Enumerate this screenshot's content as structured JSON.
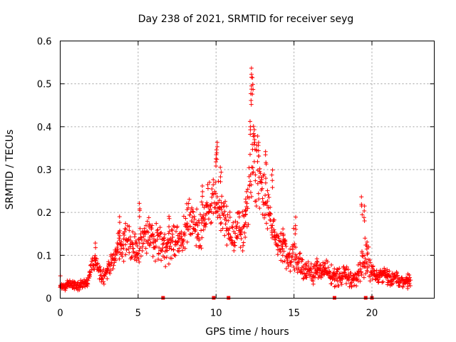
{
  "chart_data": {
    "type": "scatter",
    "title": "Day 238 of 2021, SRMTID for receiver seyg",
    "xlabel": "GPS time / hours",
    "ylabel": "SRMTID / TECUs",
    "xlim": [
      0,
      24
    ],
    "ylim": [
      0,
      0.6
    ],
    "xticks": [
      "0",
      "5",
      "10",
      "15",
      "20"
    ],
    "xtick_values": [
      0,
      5,
      10,
      15,
      20
    ],
    "yticks": [
      "0",
      "0.1",
      "0.2",
      "0.3",
      "0.4",
      "0.5",
      "0.6"
    ],
    "ytick_values": [
      0,
      0.1,
      0.2,
      0.3,
      0.4,
      0.5,
      0.6
    ],
    "grid": true,
    "marker": "plus",
    "series": [
      {
        "name": "SRMTID",
        "color": "#ff0000",
        "x": [
          0.0,
          0.25,
          0.5,
          0.75,
          1.0,
          1.25,
          1.5,
          1.75,
          2.0,
          2.25,
          2.5,
          2.75,
          3.0,
          3.25,
          3.5,
          3.75,
          4.0,
          4.25,
          4.5,
          4.75,
          5.0,
          5.25,
          5.5,
          5.75,
          6.0,
          6.25,
          6.5,
          6.75,
          7.0,
          7.25,
          7.5,
          7.75,
          8.0,
          8.25,
          8.5,
          8.75,
          9.0,
          9.25,
          9.5,
          9.75,
          10.0,
          10.25,
          10.5,
          10.75,
          11.0,
          11.25,
          11.5,
          11.75,
          12.0,
          12.25,
          12.5,
          12.75,
          13.0,
          13.25,
          13.5,
          13.75,
          14.0,
          14.25,
          14.5,
          14.75,
          15.0,
          15.25,
          15.5,
          15.75,
          16.0,
          16.25,
          16.5,
          16.75,
          17.0,
          17.25,
          17.5,
          17.75,
          18.0,
          18.25,
          18.5,
          18.75,
          19.0,
          19.25,
          19.5,
          19.75,
          20.0,
          20.25,
          20.5,
          20.75,
          21.0,
          21.25,
          21.5,
          21.75,
          22.0,
          22.25,
          22.5
        ],
        "y": [
          0.03,
          0.025,
          0.035,
          0.03,
          0.028,
          0.03,
          0.035,
          0.04,
          0.07,
          0.09,
          0.06,
          0.05,
          0.06,
          0.08,
          0.09,
          0.12,
          0.13,
          0.14,
          0.12,
          0.13,
          0.11,
          0.14,
          0.15,
          0.16,
          0.13,
          0.14,
          0.12,
          0.11,
          0.12,
          0.13,
          0.14,
          0.12,
          0.16,
          0.18,
          0.2,
          0.17,
          0.16,
          0.19,
          0.21,
          0.22,
          0.25,
          0.19,
          0.2,
          0.17,
          0.13,
          0.16,
          0.17,
          0.15,
          0.24,
          0.3,
          0.33,
          0.29,
          0.25,
          0.22,
          0.18,
          0.15,
          0.13,
          0.12,
          0.1,
          0.09,
          0.12,
          0.08,
          0.07,
          0.06,
          0.07,
          0.06,
          0.07,
          0.06,
          0.07,
          0.06,
          0.05,
          0.05,
          0.05,
          0.06,
          0.05,
          0.04,
          0.05,
          0.07,
          0.1,
          0.08,
          0.06,
          0.05,
          0.05,
          0.06,
          0.05,
          0.04,
          0.05,
          0.04,
          0.04,
          0.04,
          0.04
        ],
        "spread": [
          0.01,
          0.012,
          0.012,
          0.012,
          0.012,
          0.012,
          0.012,
          0.015,
          0.025,
          0.02,
          0.02,
          0.02,
          0.02,
          0.025,
          0.03,
          0.04,
          0.05,
          0.05,
          0.05,
          0.05,
          0.05,
          0.05,
          0.06,
          0.05,
          0.05,
          0.05,
          0.05,
          0.04,
          0.05,
          0.05,
          0.05,
          0.05,
          0.06,
          0.06,
          0.06,
          0.06,
          0.06,
          0.07,
          0.07,
          0.07,
          0.08,
          0.07,
          0.06,
          0.06,
          0.06,
          0.06,
          0.06,
          0.07,
          0.09,
          0.1,
          0.12,
          0.09,
          0.08,
          0.07,
          0.06,
          0.05,
          0.05,
          0.05,
          0.04,
          0.04,
          0.05,
          0.04,
          0.03,
          0.03,
          0.03,
          0.03,
          0.03,
          0.03,
          0.03,
          0.03,
          0.025,
          0.025,
          0.025,
          0.025,
          0.025,
          0.02,
          0.025,
          0.04,
          0.07,
          0.05,
          0.025,
          0.02,
          0.02,
          0.02,
          0.02,
          0.02,
          0.02,
          0.015,
          0.015,
          0.015,
          0.015
        ],
        "peaks": [
          [
            0.0,
            0.055
          ],
          [
            2.25,
            0.13
          ],
          [
            3.8,
            0.19
          ],
          [
            5.1,
            0.23
          ],
          [
            7.0,
            0.2
          ],
          [
            9.1,
            0.27
          ],
          [
            10.0,
            0.35
          ],
          [
            10.05,
            0.37
          ],
          [
            10.3,
            0.31
          ],
          [
            11.9,
            0.24
          ],
          [
            12.2,
            0.42
          ],
          [
            12.3,
            0.54
          ],
          [
            12.35,
            0.52
          ],
          [
            12.25,
            0.49
          ],
          [
            12.45,
            0.4
          ],
          [
            12.7,
            0.37
          ],
          [
            13.2,
            0.35
          ],
          [
            13.6,
            0.3
          ],
          [
            14.3,
            0.17
          ],
          [
            15.1,
            0.19
          ],
          [
            16.5,
            0.1
          ],
          [
            19.35,
            0.24
          ],
          [
            19.5,
            0.22
          ],
          [
            19.7,
            0.14
          ],
          [
            21.0,
            0.07
          ],
          [
            22.3,
            0.06
          ]
        ]
      }
    ],
    "flag_markers_x": [
      6.6,
      9.85,
      10.8,
      17.6,
      19.6,
      20.0
    ]
  }
}
